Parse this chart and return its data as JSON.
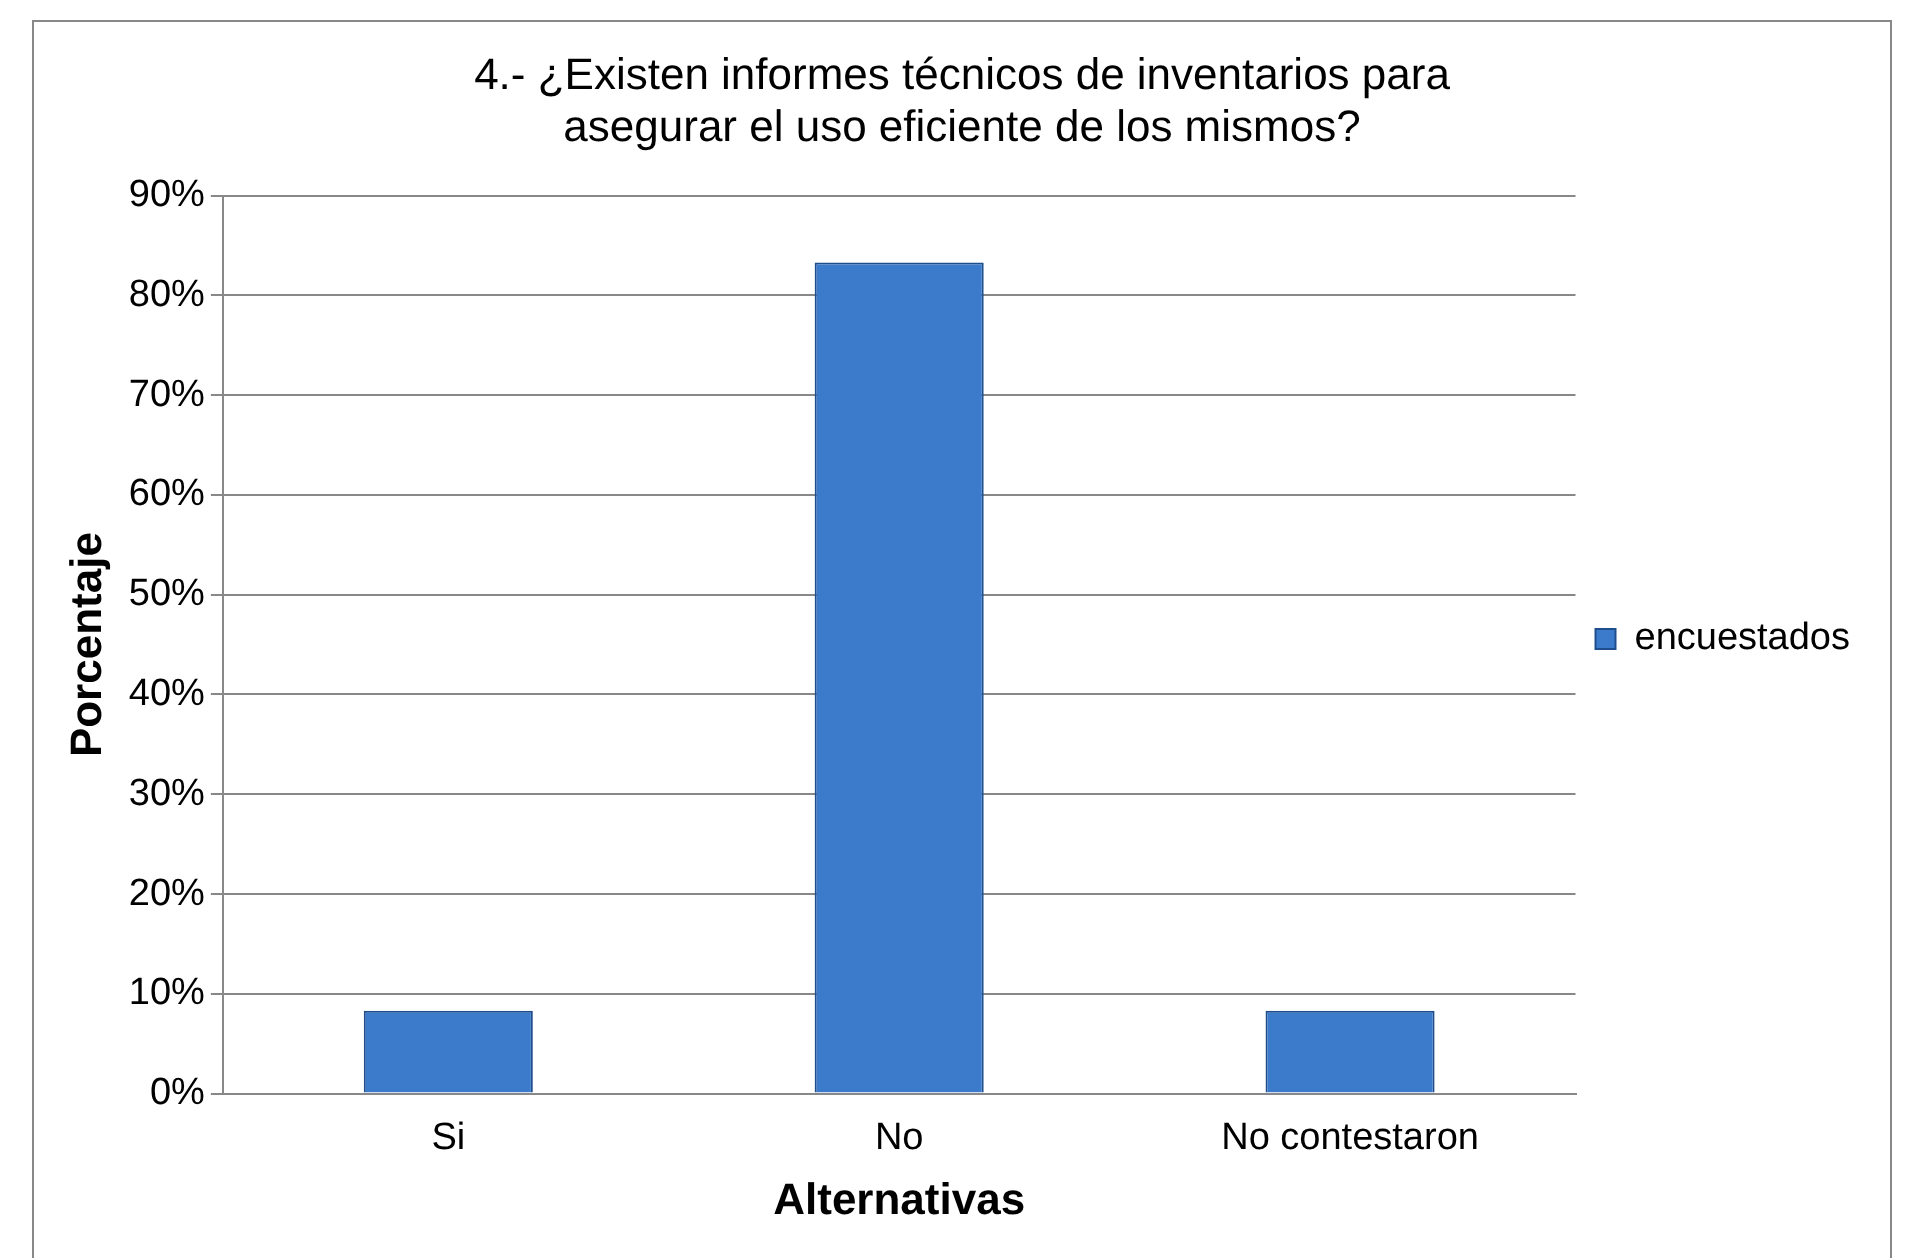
{
  "chart_data": {
    "type": "bar",
    "title": "4.- ¿Existen informes técnicos de inventarios para asegurar el uso eficiente de los mismos?",
    "xlabel": "Alternativas",
    "ylabel": "Porcentaje",
    "categories": [
      "Si",
      "No",
      "No contestaron"
    ],
    "series": [
      {
        "name": "encuestados",
        "color": "#3c7bcb",
        "values": [
          8.3,
          83.3,
          8.3
        ]
      }
    ],
    "ylim": [
      0,
      90
    ],
    "yticks": [
      {
        "value": 0,
        "label": "0%"
      },
      {
        "value": 10,
        "label": "10%"
      },
      {
        "value": 20,
        "label": "20%"
      },
      {
        "value": 30,
        "label": "30%"
      },
      {
        "value": 40,
        "label": "40%"
      },
      {
        "value": 50,
        "label": "50%"
      },
      {
        "value": 60,
        "label": "60%"
      },
      {
        "value": 70,
        "label": "70%"
      },
      {
        "value": 80,
        "label": "80%"
      },
      {
        "value": 90,
        "label": "90%"
      }
    ],
    "grid": "y",
    "legend": "right"
  }
}
